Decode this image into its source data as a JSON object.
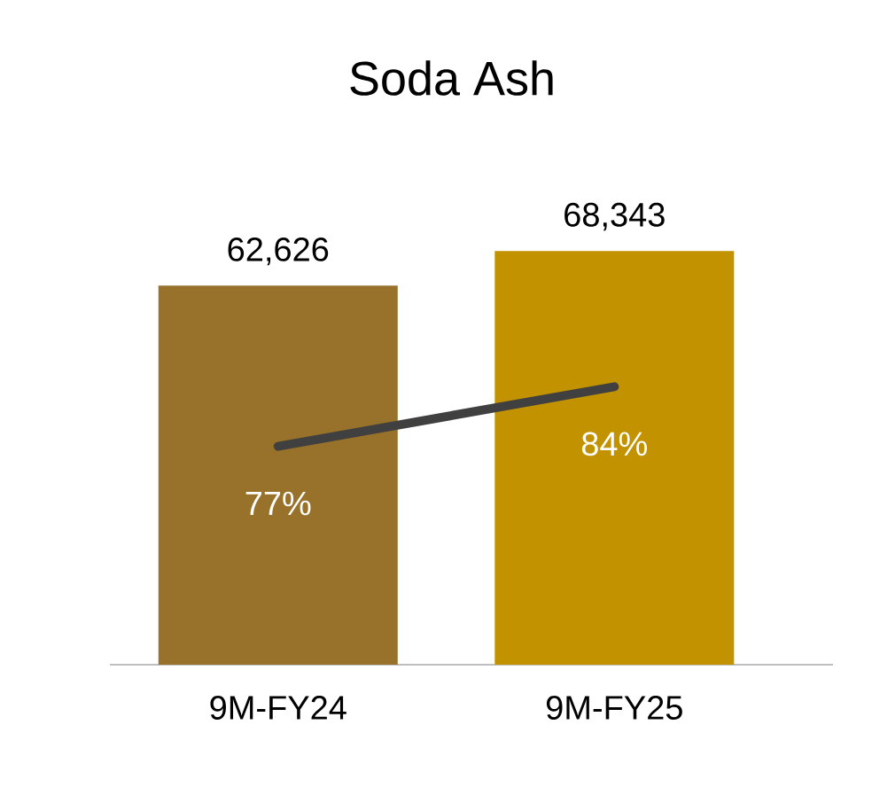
{
  "chart_data": {
    "type": "bar",
    "title": "Soda Ash",
    "categories": [
      "9M-FY24",
      "9M-FY25"
    ],
    "tick_labels": "x",
    "series": [
      {
        "colors": [
          "#98722a",
          "#c39200"
        ],
        "values": [
          62626,
          68343
        ],
        "value_labels": [
          "62,626",
          "68,343"
        ]
      },
      {
        "type": "line",
        "axis": "y2",
        "color": "#404040",
        "values": [
          77,
          84
        ],
        "value_labels": [
          "77%",
          "84%"
        ]
      }
    ]
  }
}
